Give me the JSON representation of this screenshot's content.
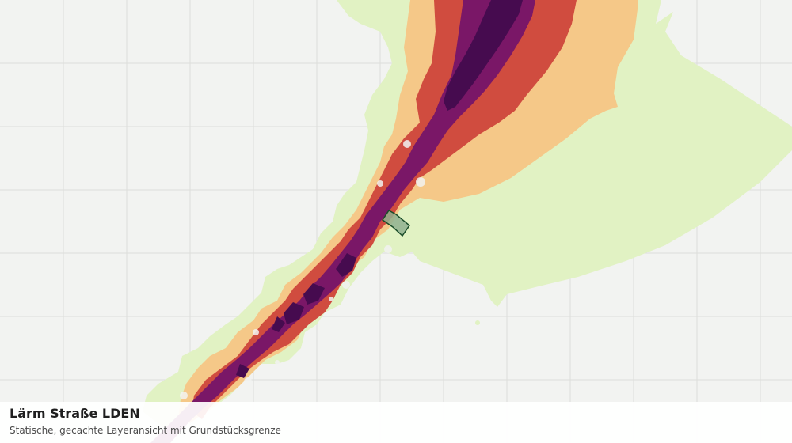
{
  "map": {
    "background": "#f2f3f1",
    "grid_color": "#dcdedb",
    "noise_class_colors": [
      "#e1f2c3",
      "#f5c888",
      "#d04c3f",
      "#7a1767",
      "#460b4f"
    ],
    "parcel_fill": "#8fb08f",
    "parcel_stroke": "#1b4d2a"
  },
  "caption": {
    "title": "Lärm Straße LDEN",
    "subtitle": "Statische, gecachte Layeransicht mit Grundstücksgrenze"
  }
}
